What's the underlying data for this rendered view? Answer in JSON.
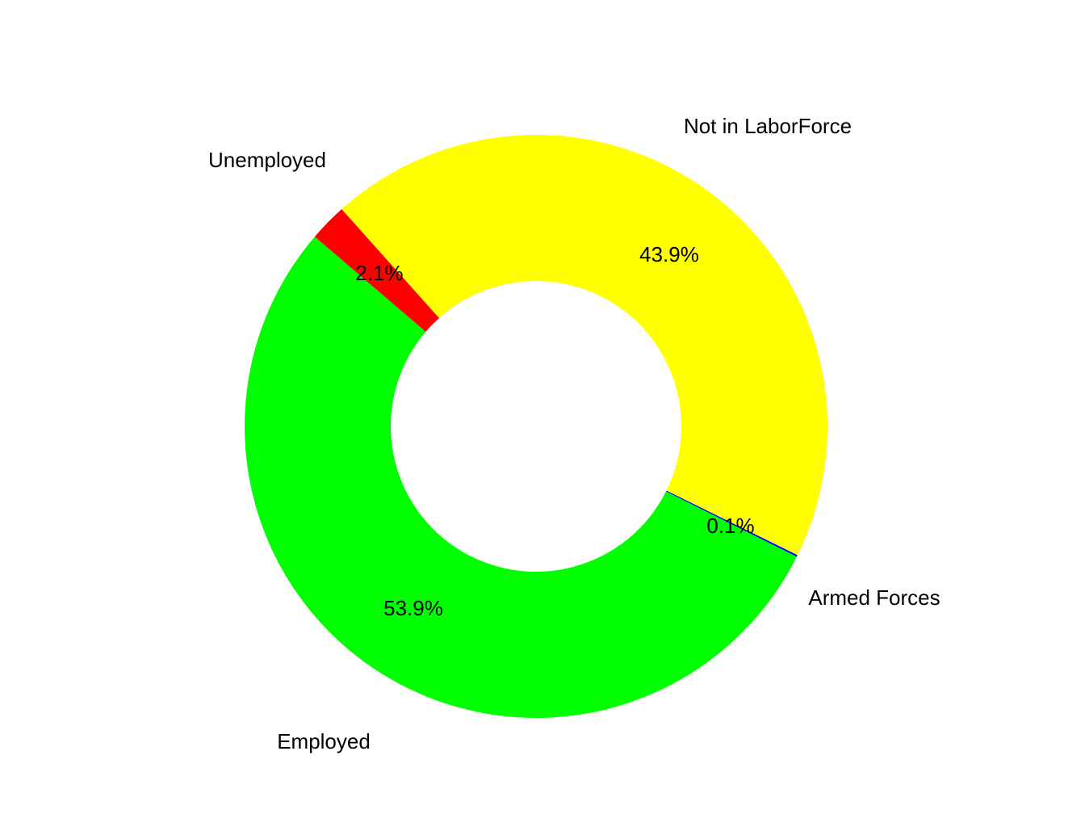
{
  "chart_data": {
    "type": "donut",
    "categories": [
      "Employed",
      "Armed Forces",
      "Not in LaborForce",
      "Unemployed"
    ],
    "values": [
      53.9,
      0.1,
      43.9,
      2.1
    ],
    "value_labels": [
      "53.9%",
      "0.1%",
      "43.9%",
      "2.1%"
    ],
    "colors": [
      "#00ff00",
      "#0000ff",
      "#ffff00",
      "#ff0000"
    ]
  }
}
